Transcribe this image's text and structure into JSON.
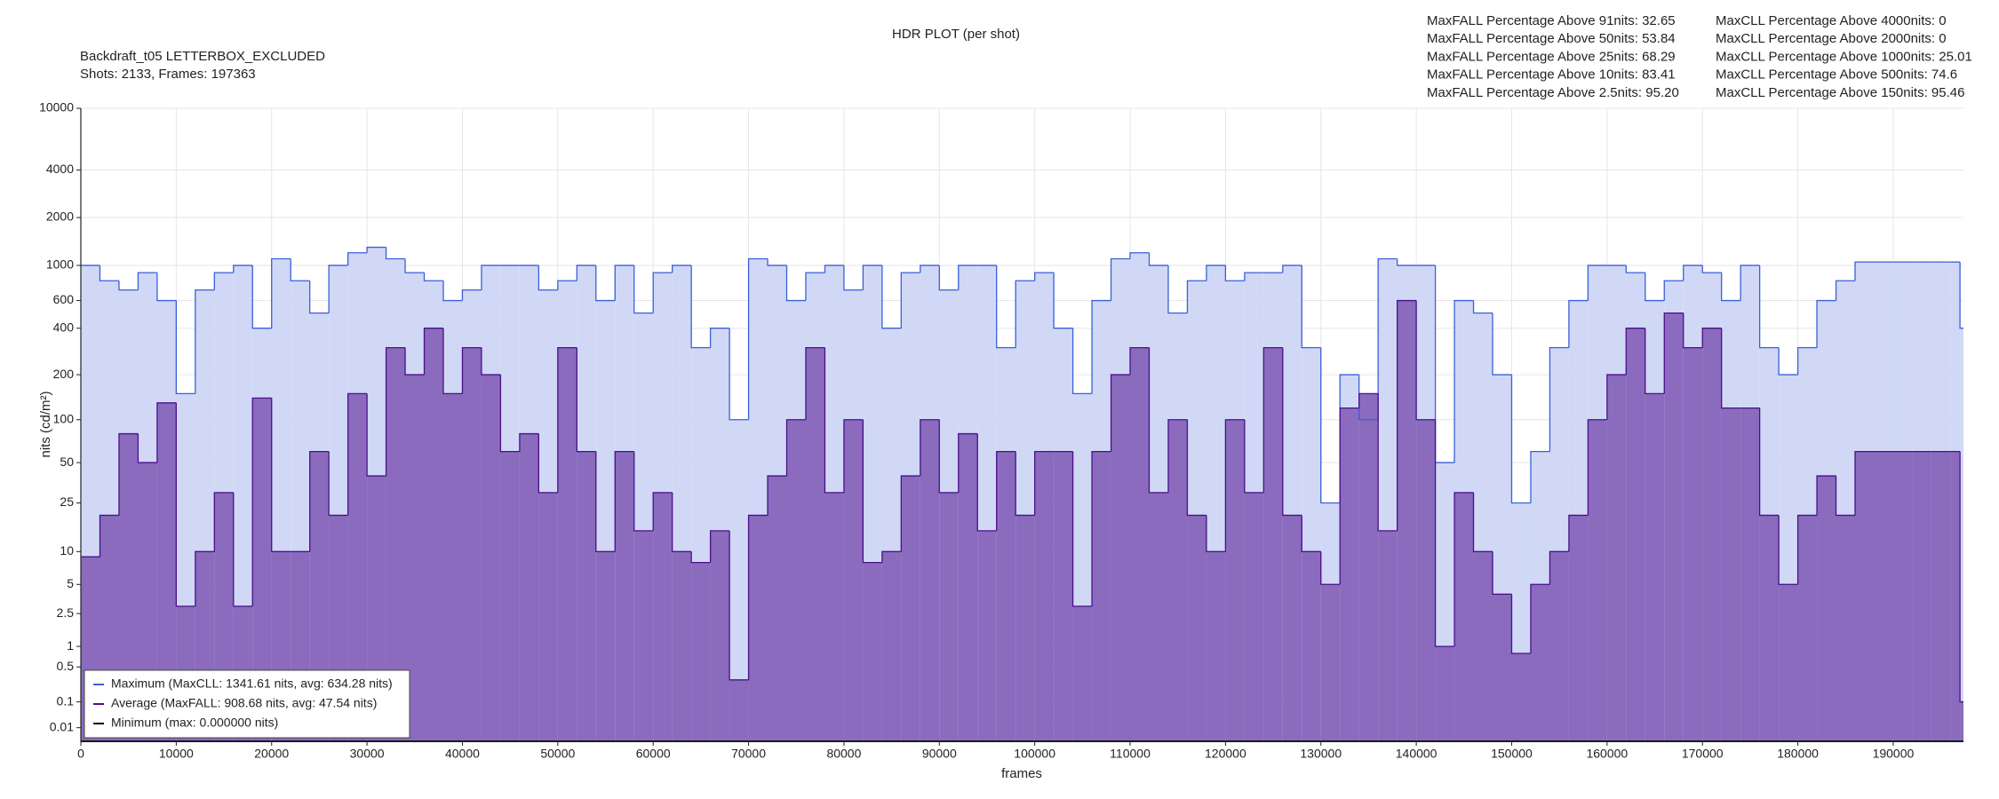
{
  "chart_data": {
    "type": "step-area",
    "title": "HDR PLOT (per shot)",
    "info": [
      "Backdraft_t05 LETTERBOX_EXCLUDED",
      "Shots:  2133, Frames: 197363"
    ],
    "stats_left": [
      "MaxFALL Percentage Above  91nits: 32.65",
      "MaxFALL Percentage Above  50nits: 53.84",
      "MaxFALL Percentage Above  25nits: 68.29",
      "MaxFALL Percentage Above  10nits: 83.41",
      "MaxFALL Percentage Above 2.5nits: 95.20"
    ],
    "stats_right": [
      "MaxCLL Percentage Above 4000nits: 0",
      "MaxCLL Percentage Above 2000nits: 0",
      "MaxCLL Percentage Above 1000nits: 25.01",
      "MaxCLL Percentage Above   500nits: 74.6",
      "MaxCLL Percentage Above   150nits: 95.46"
    ],
    "xlabel": "frames",
    "ylabel": "nits (cd/m²)",
    "yscale": "pq",
    "grid": true,
    "legend": "lower left",
    "xlim": [
      0,
      197363
    ],
    "ylim": [
      0,
      10000
    ],
    "xticks": [
      0,
      10000,
      20000,
      30000,
      40000,
      50000,
      60000,
      70000,
      80000,
      90000,
      100000,
      110000,
      120000,
      130000,
      140000,
      150000,
      160000,
      170000,
      180000,
      190000
    ],
    "yticks": [
      0.01,
      0.1,
      0.5,
      1,
      2.5,
      5,
      10,
      25,
      50,
      100,
      200,
      400,
      600,
      1000,
      2000,
      4000,
      10000
    ],
    "x": [
      0,
      2000,
      4000,
      6000,
      8000,
      10000,
      12000,
      14000,
      16000,
      18000,
      20000,
      22000,
      24000,
      26000,
      28000,
      30000,
      32000,
      34000,
      36000,
      38000,
      40000,
      42000,
      44000,
      46000,
      48000,
      50000,
      52000,
      54000,
      56000,
      58000,
      60000,
      62000,
      64000,
      66000,
      68000,
      70000,
      72000,
      74000,
      76000,
      78000,
      80000,
      82000,
      84000,
      86000,
      88000,
      90000,
      92000,
      94000,
      96000,
      98000,
      100000,
      102000,
      104000,
      106000,
      108000,
      110000,
      112000,
      114000,
      116000,
      118000,
      120000,
      122000,
      124000,
      126000,
      128000,
      130000,
      132000,
      134000,
      136000,
      138000,
      140000,
      142000,
      144000,
      146000,
      148000,
      150000,
      152000,
      154000,
      156000,
      158000,
      160000,
      162000,
      164000,
      166000,
      168000,
      170000,
      172000,
      174000,
      176000,
      178000,
      180000,
      182000,
      184000,
      186000,
      188000,
      190000,
      192000,
      194000,
      196000,
      197000
    ],
    "series": [
      {
        "name": "Maximum (MaxCLL: 1341.61 nits, avg: 634.28 nits)",
        "color": "#3a5fd9",
        "fill": "#d0d8f6",
        "values": [
          1000,
          800,
          700,
          900,
          600,
          150,
          700,
          900,
          1000,
          400,
          1100,
          800,
          500,
          1000,
          1200,
          1300,
          1100,
          900,
          800,
          600,
          700,
          1000,
          1000,
          1000,
          700,
          800,
          1000,
          600,
          1000,
          500,
          900,
          1000,
          300,
          400,
          100,
          1100,
          1000,
          600,
          900,
          1000,
          700,
          1000,
          400,
          900,
          1000,
          700,
          1000,
          1000,
          300,
          800,
          900,
          400,
          150,
          600,
          1100,
          1200,
          1000,
          500,
          800,
          1000,
          800,
          900,
          900,
          1000,
          300,
          25,
          200,
          100,
          1100,
          1000,
          1000,
          50,
          600,
          500,
          200,
          25,
          60,
          300,
          600,
          1000,
          1000,
          900,
          600,
          800,
          1000,
          900,
          600,
          1000,
          300,
          200,
          300,
          600,
          800,
          1050,
          1050,
          1050,
          1050,
          1050,
          1050,
          400
        ]
      },
      {
        "name": "Average (MaxFALL: 908.68 nits, avg: 47.54 nits)",
        "color": "#4b0f8a",
        "fill": "#8a6bbd",
        "values": [
          9,
          20,
          80,
          50,
          130,
          3,
          10,
          30,
          3,
          140,
          10,
          10,
          60,
          20,
          150,
          40,
          300,
          200,
          400,
          150,
          300,
          200,
          60,
          80,
          30,
          300,
          60,
          10,
          60,
          15,
          30,
          10,
          8,
          15,
          0.3,
          20,
          40,
          100,
          300,
          30,
          100,
          8,
          10,
          40,
          100,
          30,
          80,
          15,
          60,
          20,
          60,
          60,
          3,
          60,
          200,
          300,
          30,
          100,
          20,
          10,
          100,
          30,
          300,
          20,
          10,
          5,
          120,
          150,
          15,
          600,
          100,
          1,
          30,
          10,
          4,
          0.8,
          5,
          10,
          20,
          100,
          200,
          400,
          150,
          500,
          300,
          400,
          120,
          120,
          20,
          5,
          20,
          40,
          20,
          60,
          60,
          60,
          60,
          60,
          60,
          0.1
        ]
      },
      {
        "name": "Minimum (max: 0.000000 nits)",
        "color": "#000000",
        "fill": "none",
        "values": [
          0,
          0,
          0,
          0,
          0,
          0,
          0,
          0,
          0,
          0,
          0,
          0,
          0,
          0,
          0,
          0,
          0,
          0,
          0,
          0,
          0,
          0,
          0,
          0,
          0,
          0,
          0,
          0,
          0,
          0,
          0,
          0,
          0,
          0,
          0,
          0,
          0,
          0,
          0,
          0,
          0,
          0,
          0,
          0,
          0,
          0,
          0,
          0,
          0,
          0,
          0,
          0,
          0,
          0,
          0,
          0,
          0,
          0,
          0,
          0,
          0,
          0,
          0,
          0,
          0,
          0,
          0,
          0,
          0,
          0,
          0,
          0,
          0,
          0,
          0,
          0,
          0,
          0,
          0,
          0,
          0,
          0,
          0,
          0,
          0,
          0,
          0,
          0,
          0,
          0,
          0,
          0,
          0,
          0,
          0,
          0,
          0,
          0,
          0,
          0
        ]
      }
    ]
  }
}
